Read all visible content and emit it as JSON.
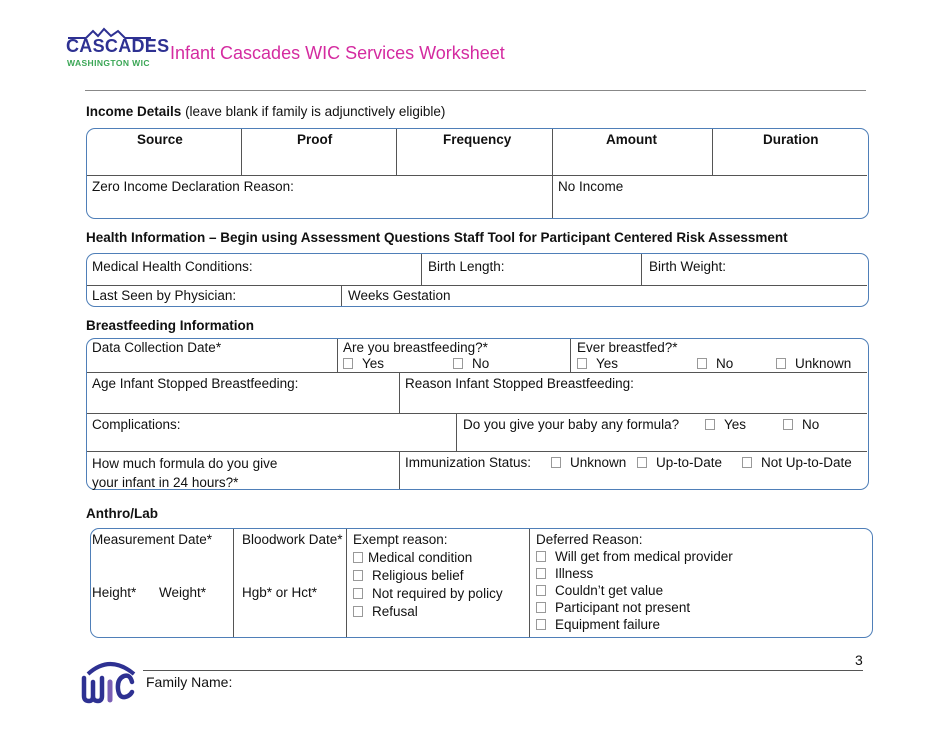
{
  "header": {
    "logo": {
      "main": "CASCADES",
      "sub": "WASHINGTON WIC"
    },
    "title": "Infant Cascades WIC Services Worksheet",
    "title_color": "#d42ba0",
    "brand_color": "#2e3192"
  },
  "income": {
    "heading": "Income Details",
    "note": "(leave blank if family is adjunctively eligible)",
    "columns": [
      "Source",
      "Proof",
      "Frequency",
      "Amount",
      "Duration"
    ],
    "zero_label": "Zero Income Declaration Reason:",
    "no_income": "No Income"
  },
  "health": {
    "heading": "Health Information – Begin using Assessment Questions Staff Tool for Participant Centered Risk Assessment",
    "medical": "Medical Health Conditions:",
    "birth_length": "Birth Length:",
    "birth_weight": "Birth Weight:",
    "physician": "Last Seen by Physician:",
    "weeks": "Weeks Gestation"
  },
  "breastfeeding": {
    "heading": "Breastfeeding Information",
    "date": "Data Collection Date*",
    "are_you": "Are you breastfeeding?*",
    "are_options": [
      "Yes",
      "No"
    ],
    "ever": "Ever breastfed?*",
    "ever_options": [
      "Yes",
      "No",
      "Unknown"
    ],
    "age_stopped": "Age Infant Stopped Breastfeeding:",
    "reason_stopped": "Reason Infant Stopped Breastfeeding:",
    "complications": "Complications:",
    "formula_q": "Do you give your baby any formula?",
    "formula_options": [
      "Yes",
      "No"
    ],
    "how_much_1": "How much formula do you give",
    "how_much_2": "your infant in 24 hours?*",
    "immunization": "Immunization Status:",
    "immunization_options": [
      "Unknown",
      "Up-to-Date",
      "Not Up-to-Date"
    ]
  },
  "anthro": {
    "heading": "Anthro/Lab",
    "measurement": "Measurement Date*",
    "height": "Height*",
    "weight": "Weight*",
    "bloodwork": "Bloodwork Date*",
    "hgb": "Hgb* or Hct*",
    "exempt": "Exempt reason:",
    "exempt_options": [
      "Medical condition",
      "Religious belief",
      "Not required by policy",
      "Refusal"
    ],
    "deferred": "Deferred Reason:",
    "deferred_options": [
      "Will get from medical provider",
      "Illness",
      "Couldn’t get value",
      "Participant not present",
      "Equipment failure"
    ]
  },
  "footer": {
    "logo": "WIC",
    "family_name": "Family Name:",
    "page_number": "3"
  }
}
